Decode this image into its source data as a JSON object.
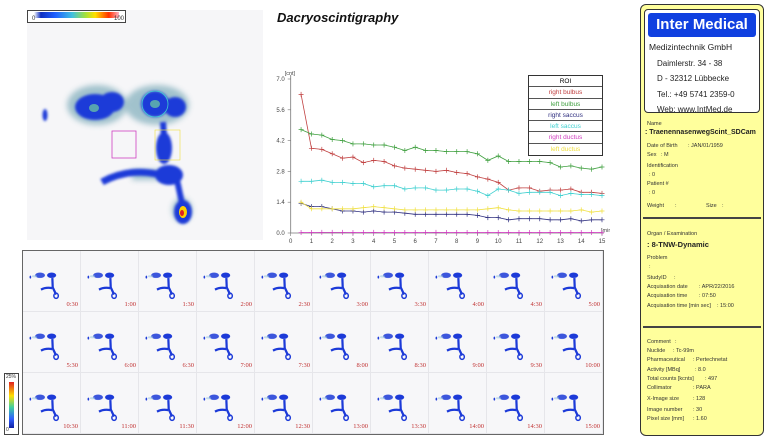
{
  "title": "Dacryoscintigraphy",
  "colorbar": {
    "min": "0",
    "max": "100"
  },
  "thumb_colorbar": {
    "max": "25%",
    "min": "0"
  },
  "legend": {
    "header": "ROI",
    "items": [
      {
        "label": "right bulbus",
        "color": "#c04040"
      },
      {
        "label": "left bulbus",
        "color": "#40a040"
      },
      {
        "label": "right saccus",
        "color": "#303080"
      },
      {
        "label": "left saccus",
        "color": "#40d0d0"
      },
      {
        "label": "right ductus",
        "color": "#d040c0"
      },
      {
        "label": "left ductus",
        "color": "#f0e040"
      }
    ]
  },
  "chart_data": {
    "type": "line",
    "ylabel": "[cnt]",
    "xlabel": "[min]",
    "xlim": [
      0,
      15
    ],
    "ylim": [
      0,
      7.0
    ],
    "xticks": [
      "0",
      "1",
      "2",
      "3",
      "4",
      "5",
      "6",
      "7",
      "8",
      "9",
      "10",
      "11",
      "12",
      "13",
      "14",
      "15"
    ],
    "yticks": [
      "0.0",
      "1.4",
      "2.8",
      "4.2",
      "5.6",
      "7.0"
    ],
    "x": [
      0.5,
      1,
      1.5,
      2,
      2.5,
      3,
      3.5,
      4,
      4.5,
      5,
      5.5,
      6,
      6.5,
      7,
      7.5,
      8,
      8.5,
      9,
      9.5,
      10,
      10.5,
      11,
      11.5,
      12,
      12.5,
      13,
      13.5,
      14,
      14.5,
      15
    ],
    "series": [
      {
        "name": "right bulbus",
        "color": "#c04040",
        "values": [
          6.3,
          3.85,
          3.8,
          3.6,
          3.4,
          3.45,
          3.2,
          3.3,
          3.25,
          3.05,
          2.95,
          2.9,
          2.85,
          2.8,
          2.85,
          2.75,
          2.7,
          2.55,
          2.45,
          2.3,
          1.95,
          2.05,
          2.05,
          1.9,
          1.95,
          1.95,
          2.0,
          1.85,
          1.85,
          1.8
        ]
      },
      {
        "name": "left bulbus",
        "color": "#40a040",
        "values": [
          4.7,
          4.5,
          4.45,
          4.25,
          4.2,
          4.05,
          4.05,
          4.0,
          4.0,
          3.9,
          3.75,
          3.9,
          3.75,
          3.75,
          3.7,
          3.7,
          3.7,
          3.6,
          3.3,
          3.5,
          3.25,
          3.25,
          3.25,
          3.25,
          3.2,
          3.0,
          3.05,
          2.95,
          2.9,
          3.0
        ]
      },
      {
        "name": "right saccus",
        "color": "#303080",
        "values": [
          1.35,
          1.2,
          1.2,
          1.1,
          1.0,
          1.0,
          0.95,
          1.0,
          0.95,
          0.95,
          0.9,
          0.85,
          0.85,
          0.85,
          0.85,
          0.85,
          0.85,
          0.8,
          0.7,
          0.7,
          0.6,
          0.65,
          0.65,
          0.65,
          0.6,
          0.6,
          0.65,
          0.55,
          0.6,
          0.6
        ]
      },
      {
        "name": "left saccus",
        "color": "#40d0d0",
        "values": [
          2.35,
          2.35,
          2.4,
          2.3,
          2.3,
          2.25,
          2.25,
          2.1,
          2.15,
          2.15,
          2.0,
          2.05,
          2.05,
          1.95,
          1.95,
          2.0,
          2.0,
          1.9,
          1.7,
          2.0,
          1.95,
          1.8,
          1.85,
          1.85,
          1.85,
          1.7,
          1.8,
          1.75,
          1.75,
          1.7
        ]
      },
      {
        "name": "right ductus",
        "color": "#d040c0",
        "values": [
          0.02,
          0.02,
          0.03,
          0.03,
          0.03,
          0.02,
          0.02,
          0.03,
          0.02,
          0.02,
          0.02,
          0.02,
          0.02,
          0.03,
          0.02,
          0.02,
          0.02,
          0.02,
          0.02,
          0.02,
          0.02,
          0.02,
          0.02,
          0.02,
          0.02,
          0.02,
          0.02,
          0.02,
          0.02,
          0.02
        ]
      },
      {
        "name": "left ductus",
        "color": "#f0e040",
        "values": [
          1.4,
          1.1,
          1.1,
          1.1,
          1.1,
          1.1,
          1.15,
          1.2,
          1.15,
          1.1,
          1.05,
          1.05,
          1.05,
          1.05,
          1.05,
          1.05,
          1.05,
          1.05,
          1.1,
          1.15,
          1.05,
          1.0,
          1.0,
          1.0,
          1.0,
          1.0,
          1.0,
          1.05,
          0.95,
          1.0
        ]
      }
    ]
  },
  "frames": [
    "0:30",
    "1:00",
    "1:30",
    "2:00",
    "2:30",
    "3:00",
    "3:30",
    "4:00",
    "4:30",
    "5:00",
    "5:30",
    "6:00",
    "6:30",
    "7:00",
    "7:30",
    "8:00",
    "8:30",
    "9:00",
    "9:30",
    "10:00",
    "10:30",
    "11:00",
    "11:30",
    "12:00",
    "12:30",
    "13:00",
    "13:30",
    "14:00",
    "14:30",
    "15:00"
  ],
  "company": {
    "brand": "Inter Medical",
    "name": "Medizintechnik GmbH",
    "street": "Daimlerstr. 34 - 38",
    "city": "D - 32312 Lübbecke",
    "phone": "Tel.: +49 5741 2359-0",
    "web": "Web: www.IntMed.de"
  },
  "patient": {
    "name_label": "Name",
    "name": ": TraenennasenwegScint_SDCam",
    "dob_label": "Date of Birth",
    "dob": ": JAN/01/1959",
    "sex_label": "Sex",
    "sex": ": M",
    "id_label": "Identification",
    "id": ": 0",
    "pnum_label": "Patient #",
    "pnum": ": 0",
    "weight_label": "Weight",
    "weight": ":",
    "size_label": "Size",
    "size": ":"
  },
  "exam": {
    "organ_label": "Organ / Examination",
    "organ": ": 8-TNW-Dynamic",
    "problem_label": "Problem",
    "problem": ":",
    "study_label": "StudyID",
    "study": ":",
    "date_label": "Acquisation date",
    "date": ": APR/22/2016",
    "time_label": "Acquisation time",
    "time": ": 07:50",
    "dur_label": "Acquisation time [min sec]",
    "dur": ": 15:00"
  },
  "acq": {
    "comment_label": "Comment",
    "comment": ":",
    "nuclide_label": "Nuclide",
    "nuclide": ": Tc-99m",
    "pharma_label": "Pharmaceutical",
    "pharma": ": Pertechnetat",
    "activity_label": "Activity [MBq]",
    "activity": ": 8.0",
    "counts_label": "Total counts [kcnts]",
    "counts": ": 497",
    "coll_label": "Collimator",
    "coll": ": PARA",
    "xsize_label": "X-Image size",
    "xsize": ": 128",
    "imgnum_label": "Image number",
    "imgnum": ": 30",
    "pixel_label": "Pixel size [mm]",
    "pixel": ": 1.60"
  }
}
